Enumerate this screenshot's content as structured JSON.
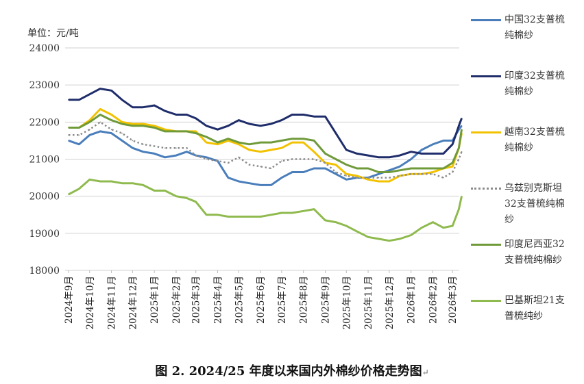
{
  "chart_data": {
    "type": "line",
    "title": "图 2. 2024/25 年度以来国内外棉纱价格走势图",
    "ylabel": "单位：元/吨",
    "ylim": [
      18000,
      24000
    ],
    "yticks": [
      18000,
      19000,
      20000,
      21000,
      22000,
      23000,
      24000
    ],
    "grid": true,
    "legend_position": "right",
    "xtick_labels": [
      "2024年9月",
      "2024年10月",
      "2024年11月",
      "2024年12月",
      "2025年1月",
      "2025年2月",
      "2025年3月",
      "2025年4月",
      "2025年5月",
      "2025年6月",
      "2025年7月",
      "2025年8月",
      "2025年9月",
      "2025年10月",
      "2025年11月",
      "2025年12月",
      "2026年1月",
      "2026年2月",
      "2026年3月"
    ],
    "xtick_dates": [
      "2024-09-01",
      "2024-10-01",
      "2024-11-01",
      "2024-12-01",
      "2025-01-01",
      "2025-02-01",
      "2025-03-01",
      "2025-04-01",
      "2025-05-01",
      "2025-06-01",
      "2025-07-01",
      "2025-08-01",
      "2025-09-01",
      "2025-10-01",
      "2025-11-01",
      "2025-12-01",
      "2026-01-01",
      "2026-02-01",
      "2026-03-01"
    ],
    "x": [
      "2024-09-01",
      "2024-09-16",
      "2024-10-01",
      "2024-10-16",
      "2024-11-01",
      "2024-11-16",
      "2024-12-01",
      "2024-12-16",
      "2025-01-01",
      "2025-01-16",
      "2025-02-01",
      "2025-02-16",
      "2025-03-01",
      "2025-03-16",
      "2025-04-01",
      "2025-04-16",
      "2025-05-01",
      "2025-05-16",
      "2025-06-01",
      "2025-06-16",
      "2025-07-01",
      "2025-07-16",
      "2025-08-01",
      "2025-08-16",
      "2025-09-01",
      "2025-09-16",
      "2025-10-01",
      "2025-10-16",
      "2025-11-01",
      "2025-11-16",
      "2025-12-01",
      "2025-12-16",
      "2026-01-01",
      "2026-01-16",
      "2026-02-01",
      "2026-02-16",
      "2026-03-01",
      "2026-03-10",
      "2026-03-14"
    ],
    "series": [
      {
        "name": "中国32支普梳纯棉纱",
        "color": "#4a7ebb",
        "style": "solid",
        "values": [
          21500,
          21400,
          21650,
          21750,
          21700,
          21500,
          21300,
          21200,
          21150,
          21050,
          21100,
          21200,
          21100,
          21050,
          20950,
          20500,
          20400,
          20350,
          20300,
          20300,
          20500,
          20650,
          20650,
          20750,
          20750,
          20600,
          20450,
          20500,
          20500,
          20600,
          20700,
          20800,
          21000,
          21250,
          21400,
          21500,
          21500,
          21800,
          21900
        ]
      },
      {
        "name": "印度32支普梳纯棉纱",
        "color": "#1f2d6b",
        "style": "solid",
        "values": [
          22600,
          22600,
          22750,
          22900,
          22850,
          22600,
          22400,
          22400,
          22450,
          22300,
          22200,
          22200,
          22100,
          21900,
          21800,
          21900,
          22050,
          21950,
          21900,
          21950,
          22050,
          22200,
          22200,
          22150,
          22150,
          21700,
          21250,
          21150,
          21100,
          21050,
          21050,
          21100,
          21200,
          21150,
          21150,
          21150,
          21400,
          21900,
          22100
        ]
      },
      {
        "name": "越南32支普梳纯棉纱",
        "color": "#f2c200",
        "style": "solid",
        "values": [
          21850,
          21850,
          22050,
          22350,
          22200,
          22000,
          21950,
          21950,
          21900,
          21800,
          21750,
          21750,
          21750,
          21450,
          21400,
          21500,
          21400,
          21250,
          21200,
          21250,
          21300,
          21450,
          21450,
          21200,
          20900,
          20850,
          20600,
          20550,
          20450,
          20400,
          20400,
          20550,
          20600,
          20600,
          20650,
          20750,
          20800,
          21300,
          21700
        ]
      },
      {
        "name": "乌兹别克斯坦32支普梳纯棉纱",
        "color": "#8c8c8c",
        "style": "dotted",
        "values": [
          21650,
          21650,
          21800,
          22000,
          21800,
          21700,
          21500,
          21400,
          21350,
          21300,
          21300,
          21300,
          21100,
          21000,
          20950,
          20900,
          21050,
          20850,
          20800,
          20750,
          20950,
          21000,
          21000,
          21000,
          20900,
          20650,
          20550,
          20500,
          20500,
          20500,
          20500,
          20550,
          20600,
          20600,
          20600,
          20500,
          20650,
          21000,
          21200
        ]
      },
      {
        "name": "印度尼西亚32支普梳纯棉纱",
        "color": "#6f9a3a",
        "style": "solid",
        "values": [
          21850,
          21850,
          22000,
          22200,
          22050,
          21950,
          21900,
          21900,
          21850,
          21750,
          21750,
          21750,
          21700,
          21600,
          21450,
          21550,
          21450,
          21400,
          21450,
          21450,
          21500,
          21550,
          21550,
          21500,
          21150,
          21000,
          20850,
          20750,
          20750,
          20650,
          20650,
          20700,
          20750,
          20750,
          20750,
          20750,
          20900,
          21300,
          21800
        ]
      },
      {
        "name": "巴基斯坦21支普梳纯纱",
        "color": "#8fba4e",
        "style": "solid",
        "values": [
          20050,
          20200,
          20450,
          20400,
          20400,
          20350,
          20350,
          20300,
          20150,
          20150,
          20000,
          19950,
          19850,
          19500,
          19500,
          19450,
          19450,
          19450,
          19450,
          19500,
          19550,
          19550,
          19600,
          19650,
          19350,
          19300,
          19200,
          19050,
          18900,
          18850,
          18800,
          18850,
          18950,
          19150,
          19300,
          19150,
          19200,
          19650,
          20000
        ]
      }
    ]
  },
  "return_mark": "↵"
}
